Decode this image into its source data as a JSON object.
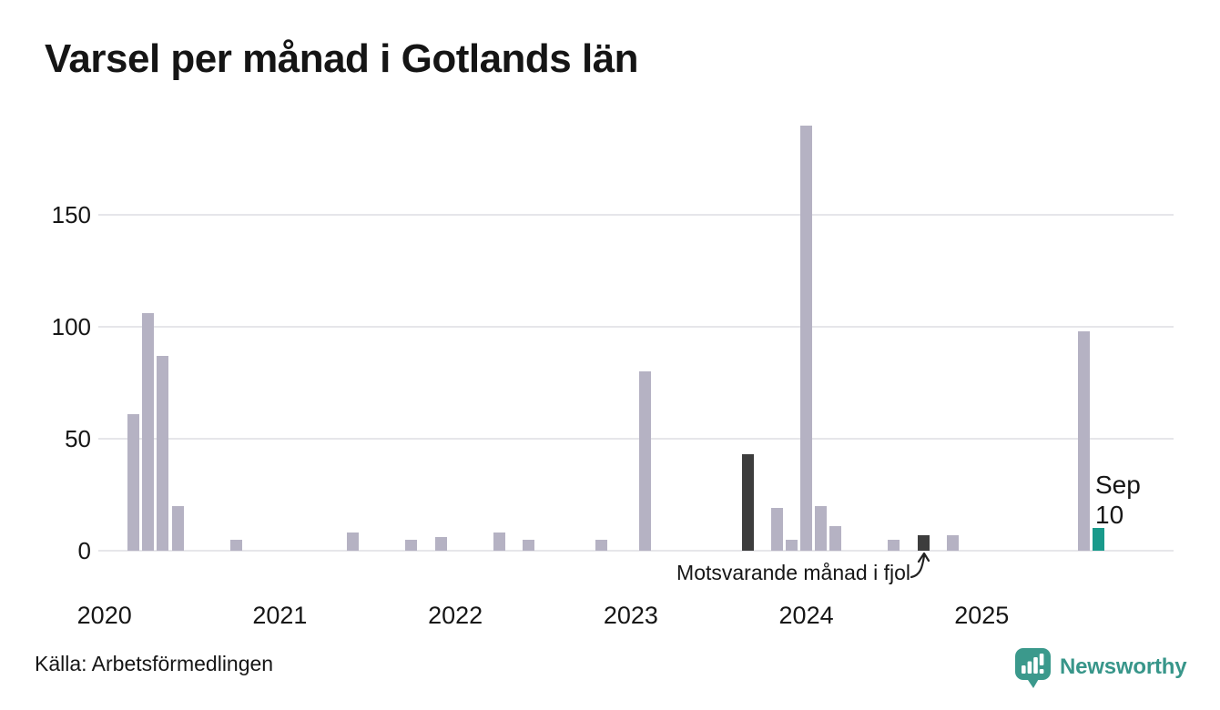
{
  "title": "Varsel per månad i Gotlands län",
  "source": "Källa: Arbetsförmedlingen",
  "brand": {
    "name": "Newsworthy"
  },
  "annotation": {
    "text": "Motsvarande månad i fjol"
  },
  "highlight_label": {
    "line1": "Sep",
    "line2": "10"
  },
  "colors": {
    "bar": "#b5b2c3",
    "dark": "#3d3d3d",
    "accent": "#199a8b",
    "grid": "#e6e6ea",
    "brand": "#38968a",
    "text": "#161616"
  },
  "chart_data": {
    "type": "bar",
    "title": "Varsel per månad i Gotlands län",
    "xlabel": "",
    "ylabel": "",
    "y_ticks": [
      0,
      50,
      100,
      150
    ],
    "ylim": [
      0,
      193
    ],
    "x_tick_labels": [
      "2020",
      "2021",
      "2022",
      "2023",
      "2024",
      "2025"
    ],
    "x_range_months": [
      "2020-01",
      "2025-12"
    ],
    "grid": "horizontal",
    "legend": "none",
    "points": [
      {
        "month": "2020-03",
        "value": 61,
        "color_role": "light"
      },
      {
        "month": "2020-04",
        "value": 106,
        "color_role": "light"
      },
      {
        "month": "2020-05",
        "value": 87,
        "color_role": "light"
      },
      {
        "month": "2020-06",
        "value": 20,
        "color_role": "light"
      },
      {
        "month": "2020-10",
        "value": 5,
        "color_role": "light"
      },
      {
        "month": "2021-06",
        "value": 8,
        "color_role": "light"
      },
      {
        "month": "2021-10",
        "value": 5,
        "color_role": "light"
      },
      {
        "month": "2021-12",
        "value": 6,
        "color_role": "light"
      },
      {
        "month": "2022-04",
        "value": 8,
        "color_role": "light"
      },
      {
        "month": "2022-06",
        "value": 5,
        "color_role": "light"
      },
      {
        "month": "2022-11",
        "value": 5,
        "color_role": "light"
      },
      {
        "month": "2023-02",
        "value": 80,
        "color_role": "light"
      },
      {
        "month": "2023-09",
        "value": 43,
        "color_role": "dark"
      },
      {
        "month": "2023-11",
        "value": 19,
        "color_role": "light"
      },
      {
        "month": "2023-12",
        "value": 5,
        "color_role": "light"
      },
      {
        "month": "2024-01",
        "value": 190,
        "color_role": "light"
      },
      {
        "month": "2024-02",
        "value": 20,
        "color_role": "light"
      },
      {
        "month": "2024-03",
        "value": 11,
        "color_role": "light"
      },
      {
        "month": "2024-07",
        "value": 5,
        "color_role": "light"
      },
      {
        "month": "2024-09",
        "value": 7,
        "color_role": "dark"
      },
      {
        "month": "2024-11",
        "value": 7,
        "color_role": "light"
      },
      {
        "month": "2025-08",
        "value": 98,
        "color_role": "light"
      },
      {
        "month": "2025-09",
        "value": 10,
        "color_role": "accent"
      }
    ],
    "annotations": [
      {
        "text": "Motsvarande månad i fjol",
        "target_month": "2024-09"
      },
      {
        "text": "Sep 10",
        "target_month": "2025-09"
      }
    ]
  }
}
